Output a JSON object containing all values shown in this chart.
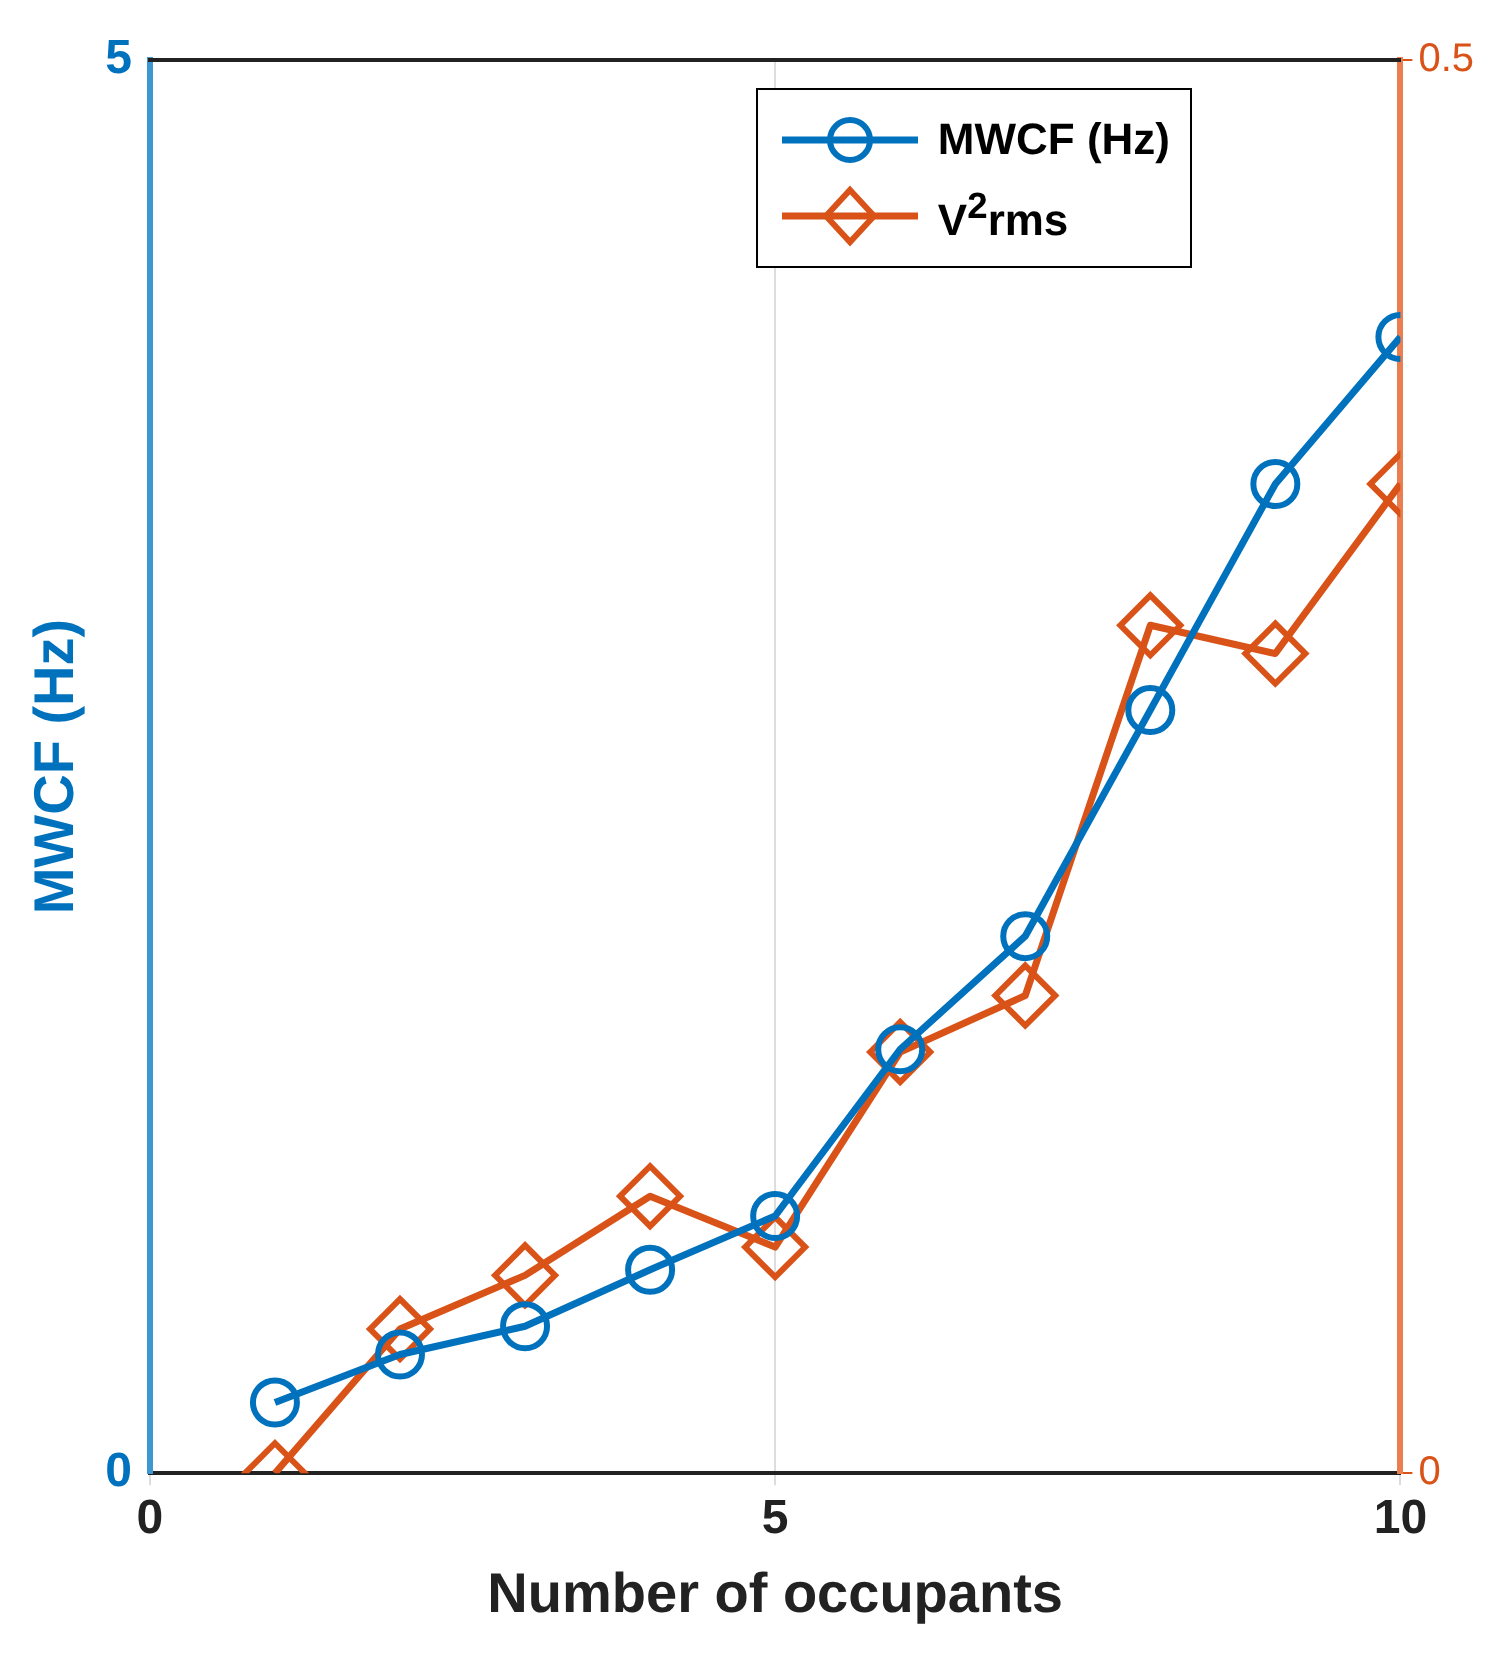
{
  "chart_data": {
    "type": "line",
    "xlabel": "Number of occupants",
    "ylabel": "MWCF (Hz)",
    "x": [
      1,
      2,
      3,
      4,
      5,
      6,
      7,
      8,
      9,
      10
    ],
    "series": [
      {
        "name": "MWCF (Hz)",
        "color": "#0072bd",
        "marker": "circle",
        "values": [
          0.25,
          0.42,
          0.52,
          0.72,
          0.91,
          1.5,
          1.9,
          2.7,
          3.5,
          4.02
        ]
      },
      {
        "name": "V$^{2}$rms",
        "color": "#d95319",
        "marker": "diamond",
        "axis": "y2",
        "values": [
          0,
          0.051,
          0.07,
          0.098,
          0.08,
          0.149,
          0.169,
          0.3,
          0.29,
          0.35
        ]
      }
    ],
    "xlim": [
      0,
      10
    ],
    "xticks": [
      0,
      5,
      10
    ],
    "ylim": [
      0,
      5
    ],
    "yticks": [
      0,
      5
    ],
    "y2lim": [
      0,
      0.5
    ],
    "y2ticks": [
      0,
      0.5
    ],
    "grid": "x",
    "legend": "top right",
    "line_style": "solid"
  }
}
